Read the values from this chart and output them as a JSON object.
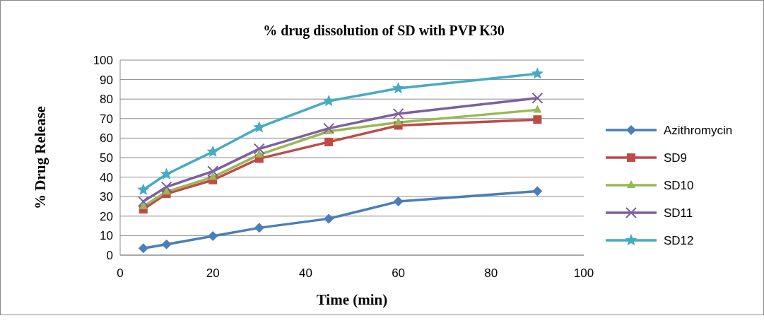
{
  "chart_data": {
    "type": "line",
    "title": "% drug dissolution of SD with PVP K30",
    "xlabel": "Time (min)",
    "ylabel": "% Drug Release",
    "x": [
      5,
      10,
      20,
      30,
      45,
      60,
      90
    ],
    "xlim": [
      0,
      100
    ],
    "xticks": [
      0,
      20,
      40,
      60,
      80,
      100
    ],
    "ylim": [
      0,
      100
    ],
    "yticks": [
      0,
      10,
      20,
      30,
      40,
      50,
      60,
      70,
      80,
      90,
      100
    ],
    "grid": "y",
    "legend": "right",
    "series": [
      {
        "name": "Azithromycin",
        "color": "#4a7ebb",
        "marker": "diamond",
        "values": [
          3.5,
          5.5,
          9.8,
          14,
          18.7,
          27.5,
          32.8
        ]
      },
      {
        "name": "SD9",
        "color": "#be4b48",
        "marker": "square",
        "values": [
          23.5,
          31.5,
          38.5,
          49.5,
          58,
          66.5,
          69.5
        ]
      },
      {
        "name": "SD10",
        "color": "#98b954",
        "marker": "triangle",
        "values": [
          25,
          32.5,
          40,
          51.5,
          63.5,
          68,
          74.5
        ]
      },
      {
        "name": "SD11",
        "color": "#7d60a0",
        "marker": "cross",
        "values": [
          27.5,
          35,
          43,
          54.5,
          65,
          72.5,
          80.5
        ]
      },
      {
        "name": "SD12",
        "color": "#46aac5",
        "marker": "star",
        "values": [
          33.5,
          41.5,
          53,
          65.5,
          79,
          85.5,
          93
        ]
      }
    ]
  }
}
